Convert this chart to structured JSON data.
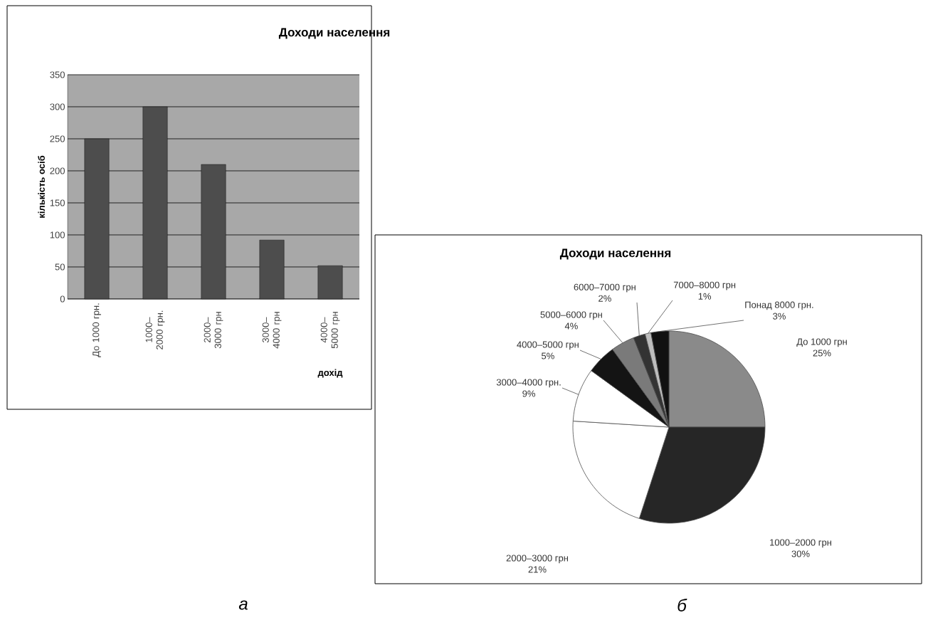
{
  "chart_data": [
    {
      "type": "bar",
      "title": "Доходи населення",
      "xlabel": "дохід",
      "ylabel": "кількість осіб",
      "categories": [
        "До 1000 грн.",
        "1000–2000 грн.",
        "2000–3000 грн",
        "3000–4000 грн",
        "4000–5000 грн"
      ],
      "values": [
        250,
        300,
        210,
        92,
        52
      ],
      "color": "#4d4d4d",
      "ylim": [
        0,
        350
      ],
      "yticks": [
        0,
        50,
        100,
        150,
        200,
        250,
        300,
        350
      ],
      "grid": "y",
      "annotations": [
        "а"
      ]
    },
    {
      "type": "pie",
      "title": "Доходи населення",
      "categories": [
        "До 1000 грн",
        "1000–2000 грн",
        "2000–3000 грн",
        "3000–4000 грн.",
        "4000–5000 грн",
        "5000–6000 грн",
        "6000–7000 грн",
        "7000–8000 грн",
        "Понад 8000 грн."
      ],
      "values": [
        25,
        30,
        21,
        9,
        5,
        4,
        2,
        1,
        3
      ],
      "colors": [
        "#8a8a8a",
        "#262626",
        "#ffffff",
        "#ffffff",
        "#141414",
        "#7a7a7a",
        "#333333",
        "#bdbdbd",
        "#111111"
      ],
      "value_labels": [
        "25%",
        "30%",
        "21%",
        "9%",
        "5%",
        "4%",
        "2%",
        "1%",
        "3%"
      ],
      "annotations": [
        "б"
      ]
    }
  ]
}
